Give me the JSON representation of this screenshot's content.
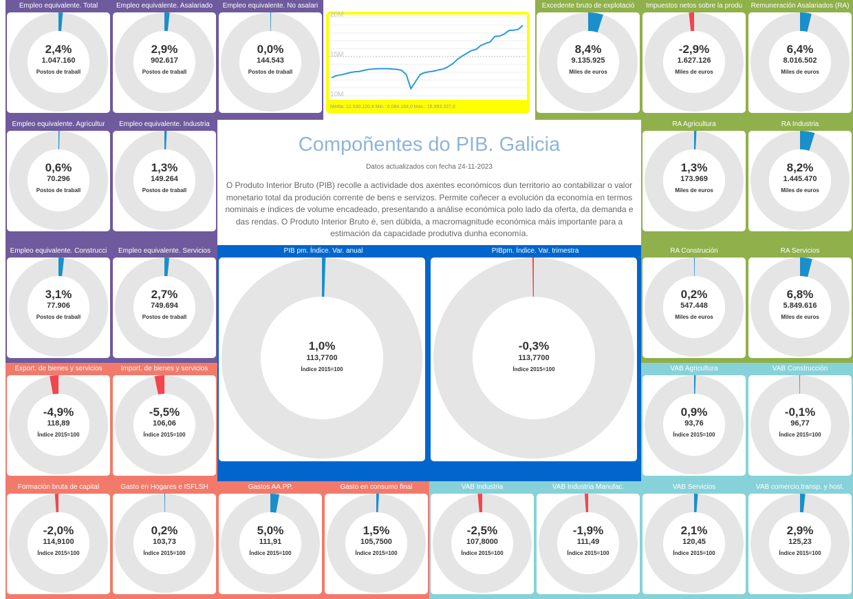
{
  "header": {
    "title": "Compoñentes do PIB. Galicia",
    "date_text": "Datos actualizados con fecha 24-11-2023",
    "description": "O Produto Interior Bruto (PIB) recolle a actividade dos axentes económicos dun territorio ao contabilizar o valor monetario total da produción corrente de bens e servizos. Permite coñecer a evolución da economía en termos nominais e índices de volume encadeado, presentando a análise económica polo lado da oferta, da demanda e das rendas. O Produto Interior Bruto é, sen dúbida, a macromagnitude económica máis importante para a estimación da capacidade produtiva dunha economía."
  },
  "colors": {
    "purple": "#6e5a9c",
    "green": "#8fb04a",
    "blue": "#0066cc",
    "salmon": "#f27a6b",
    "teal": "#87d2d9",
    "positive": "#1a8fc9",
    "negative": "#f2454d",
    "track": "#e5e5e5",
    "trend_line": "#2a9ad8",
    "trend_bg": "#ffff00"
  },
  "gauges": [
    {
      "title": "Empleo equivalente. Total",
      "pct": "2,4%",
      "value": "1.047.160",
      "unit": "Postos de traball",
      "change": 2.4
    },
    {
      "title": "Empleo equivalente. Asalariado",
      "pct": "2,9%",
      "value": "902.617",
      "unit": "Postos de traball",
      "change": 2.9
    },
    {
      "title": "Empleo equivalente. No asalari",
      "pct": "0,0%",
      "value": "144.543",
      "unit": "Postos de traball",
      "change": 0.0
    },
    {
      "title": "Excedente bruto de explotació",
      "pct": "8,4%",
      "value": "9.135.925",
      "unit": "Miles de euros",
      "change": 8.4
    },
    {
      "title": "Impuestos netos sobre la produ",
      "pct": "-2,9%",
      "value": "1.627.126",
      "unit": "Miles de euros",
      "change": -2.9
    },
    {
      "title": "Remuneración Asalariados (RA)",
      "pct": "6,4%",
      "value": "8.016.502",
      "unit": "Miles de euros",
      "change": 6.4
    },
    {
      "title": "Empleo equivalente. Agricultur",
      "pct": "0,6%",
      "value": "70.296",
      "unit": "Postos de traball",
      "change": 0.6
    },
    {
      "title": "Empleo equivalente. Industria",
      "pct": "1,3%",
      "value": "149.264",
      "unit": "Postos de traball",
      "change": 1.3
    },
    {
      "title": "RA Agricultura",
      "pct": "1,3%",
      "value": "173.969",
      "unit": "Miles de euros",
      "change": 1.3
    },
    {
      "title": "RA Industria",
      "pct": "8,2%",
      "value": "1.445.470",
      "unit": "Miles de euros",
      "change": 8.2
    },
    {
      "title": "Empleo equivalente. Construcci",
      "pct": "3,1%",
      "value": "77.906",
      "unit": "Postos de traball",
      "change": 3.1
    },
    {
      "title": "Empleo equivalente. Servicios",
      "pct": "2,7%",
      "value": "749.694",
      "unit": "Postos de traball",
      "change": 2.7
    },
    {
      "title": "PIB pm. Índice. Var. anual",
      "pct": "1,0%",
      "value": "113,7700",
      "unit": "Índice 2015=100",
      "change": 1.0
    },
    {
      "title": "PIBpm. Índice. Var. trimestra",
      "pct": "-0,3%",
      "value": "113,7700",
      "unit": "Índice 2015=100",
      "change": -0.3
    },
    {
      "title": "RA Construción",
      "pct": "0,2%",
      "value": "547.448",
      "unit": "Miles de euros",
      "change": 0.2
    },
    {
      "title": "RA Servicios",
      "pct": "6,8%",
      "value": "5.849.616",
      "unit": "Miles de euros",
      "change": 6.8
    },
    {
      "title": "Export. de bienes y servicios",
      "pct": "-4,9%",
      "value": "118,89",
      "unit": "Índice 2015=100",
      "change": -4.9
    },
    {
      "title": "Import. de bienes y servicios",
      "pct": "-5,5%",
      "value": "106,06",
      "unit": "Índice 2015=100",
      "change": -5.5
    },
    {
      "title": "VAB Agricultura",
      "pct": "0,9%",
      "value": "93,76",
      "unit": "Índice 2015=100",
      "change": 0.9
    },
    {
      "title": "VAB Construcción",
      "pct": "-0,1%",
      "value": "96,77",
      "unit": "Índice 2015=100",
      "change": -0.1
    },
    {
      "title": "Formación bruta de capital",
      "pct": "-2,0%",
      "value": "114,9100",
      "unit": "Índice 2015=100",
      "change": -2.0
    },
    {
      "title": "Gasto en Hogares e ISFLSH",
      "pct": "0,2%",
      "value": "103,73",
      "unit": "Índice 2015=100",
      "change": 0.2
    },
    {
      "title": "Gastos AA.PP.",
      "pct": "5,0%",
      "value": "111,91",
      "unit": "Índice 2015=100",
      "change": 5.0
    },
    {
      "title": "Gasto en consumo final",
      "pct": "1,5%",
      "value": "105,7500",
      "unit": "Índice 2015=100",
      "change": 1.5
    },
    {
      "title": "VAB Industria",
      "pct": "-2,5%",
      "value": "107,8000",
      "unit": "Índice 2015=100",
      "change": -2.5
    },
    {
      "title": "VAB Industria Manufac.",
      "pct": "-1,9%",
      "value": "111,49",
      "unit": "Índice 2015=100",
      "change": -1.9
    },
    {
      "title": "VAB Servicios",
      "pct": "2,1%",
      "value": "120,45",
      "unit": "Índice 2015=100",
      "change": 2.1
    },
    {
      "title": "VAB comercio,transp. y host.",
      "pct": "2,9%",
      "value": "125,23",
      "unit": "Índice 2015=100",
      "change": 2.9
    }
  ],
  "trend": {
    "y_ticks": [
      "20M",
      "15M",
      "10M"
    ],
    "summary": "Media: 12.530.120,4 Min.: 6.084.164,0 Max.: 18.993.337,0",
    "chart_data": {
      "type": "line",
      "ylim": [
        10000000,
        20000000
      ],
      "values": [
        12300000,
        12550000,
        12650000,
        12800000,
        12950000,
        13050000,
        13100000,
        13250000,
        13350000,
        13400000,
        13450000,
        13450000,
        13450000,
        13400000,
        13350000,
        13250000,
        12700000,
        10900000,
        11800000,
        12700000,
        12950000,
        13050000,
        13150000,
        13300000,
        13400000,
        13700000,
        14100000,
        14650000,
        15050000,
        15400000,
        15750000,
        15900000,
        16400000,
        16650000,
        16850000,
        17550000,
        17600000,
        17850000,
        18300000,
        18350000,
        18450000,
        18950000
      ]
    }
  }
}
